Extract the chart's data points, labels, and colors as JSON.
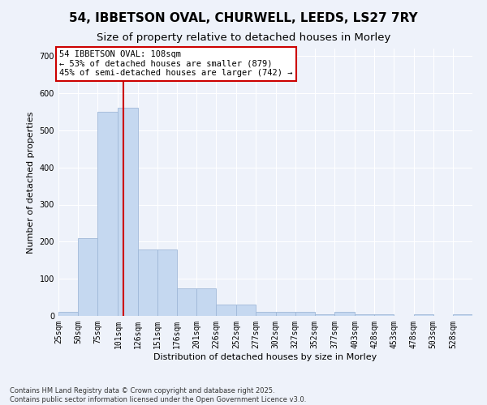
{
  "title_line1": "54, IBBETSON OVAL, CHURWELL, LEEDS, LS27 7RY",
  "title_line2": "Size of property relative to detached houses in Morley",
  "xlabel": "Distribution of detached houses by size in Morley",
  "ylabel": "Number of detached properties",
  "bar_values": [
    10,
    210,
    550,
    560,
    180,
    180,
    75,
    75,
    30,
    30,
    10,
    10,
    10,
    5,
    10,
    5,
    5,
    0,
    5,
    0,
    5
  ],
  "bin_edges": [
    25,
    50,
    75,
    101,
    126,
    151,
    176,
    201,
    226,
    252,
    277,
    302,
    327,
    352,
    377,
    403,
    428,
    453,
    478,
    503,
    528,
    553
  ],
  "tick_labels": [
    "25sqm",
    "50sqm",
    "75sqm",
    "101sqm",
    "126sqm",
    "151sqm",
    "176sqm",
    "201sqm",
    "226sqm",
    "252sqm",
    "277sqm",
    "302sqm",
    "327sqm",
    "352sqm",
    "377sqm",
    "403sqm",
    "428sqm",
    "453sqm",
    "478sqm",
    "503sqm",
    "528sqm"
  ],
  "bar_color": "#c5d8f0",
  "bar_edge_color": "#a0b8d8",
  "vline_x": 108,
  "vline_color": "#cc0000",
  "annotation_text": "54 IBBETSON OVAL: 108sqm\n← 53% of detached houses are smaller (879)\n45% of semi-detached houses are larger (742) →",
  "annotation_box_color": "#ffffff",
  "annotation_box_edge": "#cc0000",
  "ylim": [
    0,
    720
  ],
  "yticks": [
    0,
    100,
    200,
    300,
    400,
    500,
    600,
    700
  ],
  "background_color": "#eef2fa",
  "footer_text": "Contains HM Land Registry data © Crown copyright and database right 2025.\nContains public sector information licensed under the Open Government Licence v3.0.",
  "grid_color": "#ffffff",
  "title_fontsize": 11,
  "subtitle_fontsize": 9.5,
  "axis_label_fontsize": 8,
  "tick_fontsize": 7,
  "annotation_fontsize": 7.5,
  "footer_fontsize": 6
}
